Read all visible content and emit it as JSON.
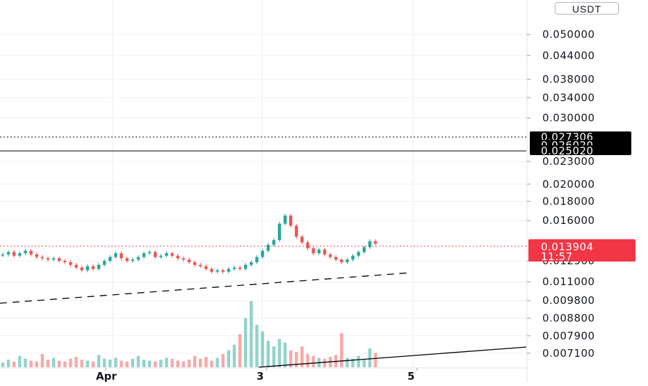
{
  "currency": "USDT",
  "countdown": "11:57",
  "chart_data": {
    "type": "candlestick",
    "price_ticks": [
      0.05,
      0.044,
      0.038,
      0.034,
      0.03,
      0.023,
      0.02,
      0.018,
      0.016,
      0.0125,
      0.011,
      0.0098,
      0.0088,
      0.0079,
      0.0071
    ],
    "price_tick_labels": [
      "0.050000",
      "0.044000",
      "0.038000",
      "0.034000",
      "0.030000",
      "0.023000",
      "0.020000",
      "0.018000",
      "0.016000",
      "0.012500",
      "0.011000",
      "0.009800",
      "0.008800",
      "0.007900",
      "0.007100"
    ],
    "time_labels": [
      "Apr",
      "3",
      "5"
    ],
    "current_price": "0.013904",
    "horizontal_lines": [
      {
        "label": "0.027306",
        "value": 0.027306,
        "style": "dotted"
      },
      {
        "label": "0.026020",
        "value": 0.02602,
        "style": "solid"
      },
      {
        "label": "0.025020",
        "value": 0.02502,
        "style": "solid"
      }
    ],
    "scale": "log",
    "colors": {
      "up": "#26a69a",
      "down": "#ef5350",
      "line": "#000000",
      "current": "#f23645"
    },
    "closes": [
      0.013,
      0.0132,
      0.0129,
      0.0131,
      0.0133,
      0.013,
      0.0128,
      0.0127,
      0.0126,
      0.0127,
      0.0125,
      0.0124,
      0.0122,
      0.012,
      0.0118,
      0.0121,
      0.0119,
      0.0122,
      0.0125,
      0.0128,
      0.0131,
      0.0127,
      0.0125,
      0.0126,
      0.0128,
      0.0131,
      0.0132,
      0.0128,
      0.0129,
      0.0131,
      0.0129,
      0.0127,
      0.0126,
      0.0124,
      0.0122,
      0.0121,
      0.0119,
      0.0117,
      0.0118,
      0.0117,
      0.0119,
      0.012,
      0.0119,
      0.0122,
      0.0124,
      0.0128,
      0.0133,
      0.0138,
      0.0142,
      0.0157,
      0.0165,
      0.0155,
      0.0145,
      0.014,
      0.0135,
      0.0131,
      0.0134,
      0.013,
      0.0128,
      0.0126,
      0.0124,
      0.0126,
      0.0129,
      0.0132,
      0.0136,
      0.0141,
      0.0139
    ],
    "volumes": [
      5,
      8,
      6,
      12,
      9,
      7,
      6,
      14,
      8,
      10,
      7,
      6,
      9,
      11,
      8,
      7,
      6,
      13,
      9,
      8,
      10,
      7,
      6,
      9,
      12,
      8,
      7,
      6,
      8,
      10,
      9,
      7,
      6,
      8,
      12,
      9,
      11,
      7,
      10,
      14,
      18,
      24,
      35,
      52,
      70,
      45,
      38,
      28,
      22,
      30,
      26,
      18,
      16,
      22,
      14,
      12,
      10,
      9,
      11,
      13,
      36,
      10,
      9,
      12,
      8,
      20,
      15
    ]
  }
}
